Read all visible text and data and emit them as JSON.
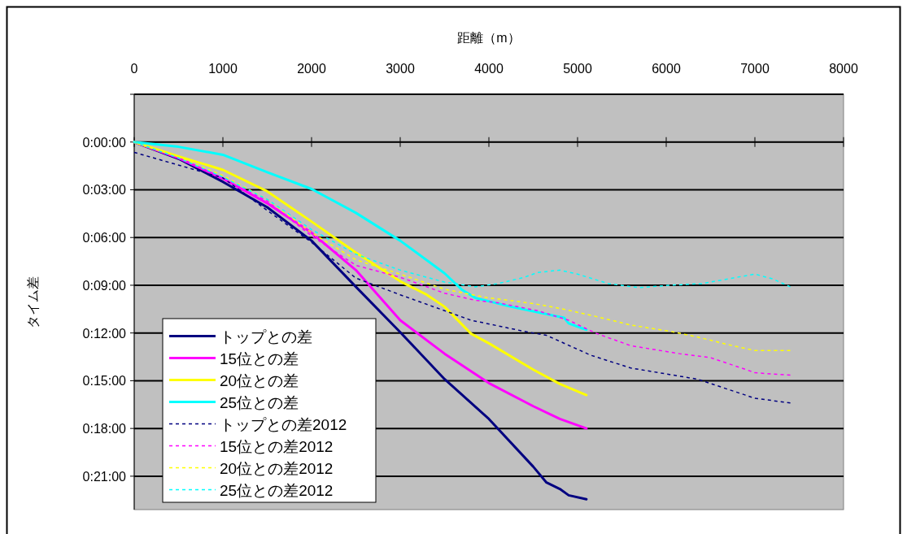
{
  "chart_data": {
    "type": "line",
    "xlabel": "距離（m）",
    "ylabel": "タイム差",
    "xlim": [
      0,
      8000
    ],
    "xticks": [
      0,
      1000,
      2000,
      3000,
      4000,
      5000,
      6000,
      7000,
      8000
    ],
    "ylim": [
      23.1,
      -3
    ],
    "yticks": [
      {
        "value": -3,
        "label": null
      },
      {
        "value": 0,
        "label": "0:00:00"
      },
      {
        "value": 3,
        "label": "0:03:00"
      },
      {
        "value": 6,
        "label": "0:06:00"
      },
      {
        "value": 9,
        "label": "0:09:00"
      },
      {
        "value": 12,
        "label": "0:12:00"
      },
      {
        "value": 15,
        "label": "0:15:00"
      },
      {
        "value": 18,
        "label": "0:18:00"
      },
      {
        "value": 21,
        "label": "0:21:00"
      }
    ],
    "grid": "y",
    "legend": "bottom left",
    "series": [
      {
        "name": "トップとの差",
        "color": "#000080",
        "line_style": "solid",
        "x": [
          0,
          500,
          1000,
          1500,
          2000,
          2500,
          3000,
          3500,
          4000,
          4500,
          4650,
          4800,
          4900,
          5100
        ],
        "values": [
          0,
          1.05,
          2.5,
          4.1,
          6.2,
          9.1,
          11.95,
          14.9,
          17.4,
          20.4,
          21.4,
          21.8,
          22.2,
          22.45
        ]
      },
      {
        "name": "15位との差",
        "color": "#ff00ff",
        "line_style": "solid",
        "x": [
          0,
          500,
          1000,
          1500,
          2000,
          2500,
          3000,
          3500,
          4000,
          4500,
          4800,
          5100
        ],
        "values": [
          0,
          1.0,
          2.3,
          3.85,
          5.7,
          8.05,
          11.2,
          13.3,
          15.15,
          16.6,
          17.4,
          18.0
        ]
      },
      {
        "name": "20位との差",
        "color": "#ffff00",
        "line_style": "solid",
        "x": [
          0,
          500,
          1000,
          1500,
          2000,
          2500,
          3000,
          3300,
          3500,
          3800,
          4000,
          4500,
          4800,
          5100
        ],
        "values": [
          0,
          0.9,
          1.75,
          3.1,
          5.0,
          6.95,
          8.75,
          9.6,
          10.35,
          12.05,
          12.65,
          14.3,
          15.2,
          15.9
        ]
      },
      {
        "name": "25位との差",
        "color": "#00ffff",
        "line_style": "solid",
        "x": [
          0,
          500,
          1000,
          1500,
          2000,
          2500,
          3000,
          3500,
          3700,
          3850,
          4250,
          4850,
          4900,
          5100
        ],
        "values": [
          0,
          0.3,
          0.8,
          1.9,
          2.95,
          4.45,
          6.2,
          8.25,
          9.3,
          9.8,
          10.35,
          11.05,
          11.4,
          11.8
        ]
      },
      {
        "name": "トップとの差2012",
        "color": "#000080",
        "line_style": "dashed",
        "x": [
          0,
          1000,
          1500,
          2000,
          2500,
          3000,
          3500,
          3800,
          4400,
          4650,
          5150,
          5600,
          6350,
          7000,
          7400
        ],
        "values": [
          0.65,
          2.25,
          4.3,
          6.3,
          8.55,
          9.6,
          10.6,
          11.2,
          11.9,
          12.15,
          13.4,
          14.2,
          14.9,
          16.1,
          16.4
        ]
      },
      {
        "name": "15位との差2012",
        "color": "#ff00ff",
        "line_style": "dashed",
        "x": [
          0,
          500,
          1000,
          1500,
          2000,
          2500,
          3000,
          3500,
          3850,
          4100,
          4550,
          4900,
          5200,
          5600,
          6150,
          6500,
          6900,
          7000,
          7400
        ],
        "values": [
          0,
          1.0,
          2.3,
          3.7,
          5.9,
          7.75,
          8.5,
          9.5,
          9.95,
          10.1,
          10.6,
          11.2,
          12.0,
          12.8,
          13.3,
          13.55,
          14.3,
          14.5,
          14.65
        ]
      },
      {
        "name": "20位との差2012",
        "color": "#ffff00",
        "line_style": "dashed",
        "x": [
          0,
          500,
          1000,
          1500,
          2000,
          2500,
          3000,
          3500,
          3950,
          4500,
          4800,
          5200,
          5600,
          6050,
          6350,
          6750,
          7000,
          7400
        ],
        "values": [
          0,
          0.95,
          2.1,
          3.6,
          5.7,
          7.4,
          8.3,
          9.25,
          9.75,
          10.15,
          10.45,
          10.95,
          11.5,
          11.9,
          12.25,
          12.8,
          13.1,
          13.1
        ]
      },
      {
        "name": "25位との差2012",
        "color": "#00ffff",
        "line_style": "dashed",
        "x": [
          0,
          500,
          1000,
          1500,
          2000,
          2500,
          3000,
          3500,
          3850,
          4100,
          4400,
          4550,
          4800,
          5000,
          5350,
          5700,
          6050,
          6400,
          6700,
          7000,
          7200,
          7400
        ],
        "values": [
          0,
          1.0,
          2.2,
          3.6,
          5.5,
          7.05,
          8.05,
          8.8,
          9.1,
          8.9,
          8.5,
          8.2,
          8.05,
          8.3,
          8.9,
          9.15,
          9.0,
          8.9,
          8.6,
          8.3,
          8.6,
          9.1
        ]
      }
    ]
  }
}
